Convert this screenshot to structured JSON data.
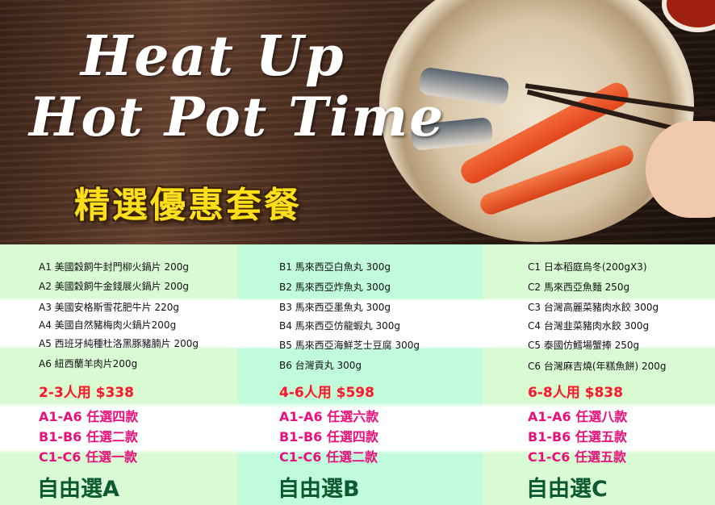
{
  "hero": {
    "title_line1": "Heat Up",
    "title_line2": "Hot Pot Time",
    "subtitle": "精選優惠套餐"
  },
  "columns": [
    {
      "items": [
        "A1 美國穀飼牛封門柳火鍋片 200g",
        "A2 美國穀飼牛金錢展火鍋片 200g",
        "A3 美國安格斯雪花肥牛片 220g",
        "A4 美國自然豬梅肉火鍋片200g",
        "A5 西班牙純種杜洛黑豚豬腩片 200g",
        "A6 紐西蘭羊肉片200g"
      ],
      "price": "2-3人用 $338",
      "rules": [
        "A1-A6 任選四款",
        "B1-B6 任選二款",
        "C1-C6 任選一款"
      ],
      "plan": "自由選A"
    },
    {
      "items": [
        "B1 馬來西亞白魚丸 300g",
        "B2 馬來西亞炸魚丸 300g",
        "B3 馬來西亞墨魚丸 300g",
        "B4 馬來西亞仿龍蝦丸 300g",
        "B5 馬來西亞海鮮芝士豆腐 300g",
        "B6 台灣貢丸 300g"
      ],
      "price": "4-6人用 $598",
      "rules": [
        "A1-A6 任選六款",
        "B1-B6 任選四款",
        "C1-C6 任選二款"
      ],
      "plan": "自由選B"
    },
    {
      "items": [
        "C1 日本稻庭烏冬(200gX3)",
        "C2 馬來西亞魚麵 250g",
        "C3 台灣高麗菜豬肉水餃 300g",
        "C4 台灣韭菜豬肉水餃 300g",
        "C5 泰國仿鱈場蟹捧 250g",
        "C6 台灣麻吉燒(年糕魚餅) 200g"
      ],
      "price": "6-8人用 $838",
      "rules": [
        "A1-A6 任選八款",
        "B1-B6 任選五款",
        "C1-C6 任選五款"
      ],
      "plan": "自由選C"
    }
  ],
  "colors": {
    "col_light": "#d9fbd3",
    "col_mint": "#c0fcdc",
    "price": "#ee1552",
    "rule": "#e8107a",
    "plan": "#0b5a32",
    "subtitle": "#ffdf1a"
  }
}
